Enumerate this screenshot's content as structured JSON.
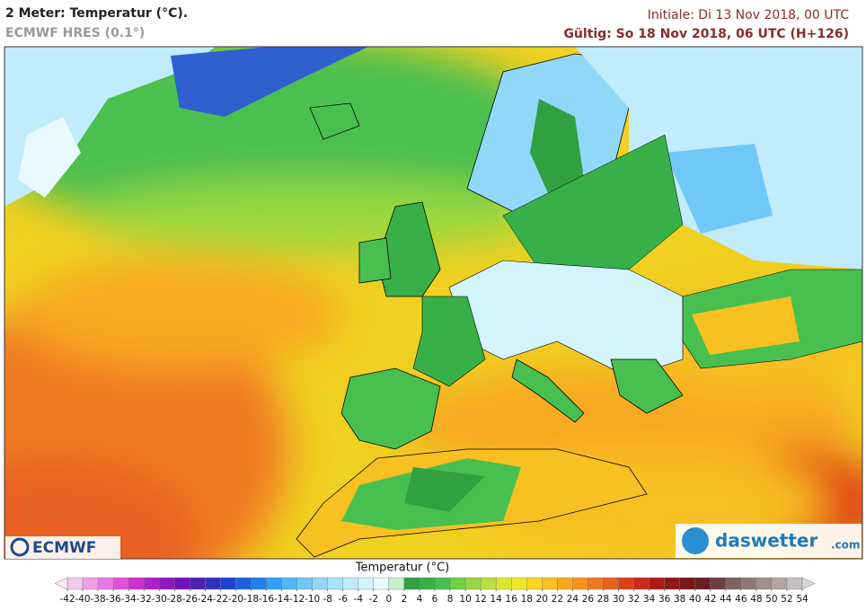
{
  "header": {
    "title": "2 Meter: Temperatur (°C).",
    "model": "ECMWF HRES (0.1°)",
    "init": "Initiale: Di 13 Nov 2018, 00 UTC",
    "valid": "Gültig: So 18 Nov 2018, 06 UTC (H+126)"
  },
  "colorbar": {
    "label": "Temperatur (°C)",
    "ticks": [
      -42,
      -40,
      -38,
      -36,
      -34,
      -32,
      -30,
      -28,
      -26,
      -24,
      -22,
      -20,
      -18,
      -16,
      -14,
      -12,
      -10,
      -8,
      -6,
      -4,
      -2,
      0,
      2,
      4,
      6,
      8,
      10,
      12,
      14,
      16,
      18,
      20,
      22,
      24,
      26,
      28,
      30,
      32,
      34,
      36,
      38,
      40,
      42,
      44,
      46,
      48,
      50,
      52,
      54
    ],
    "under_color": "#fde8fb",
    "over_color": "#d8d8d8",
    "colors": [
      "#f5c8f0",
      "#f0a0ea",
      "#e878e0",
      "#e050d8",
      "#d030d0",
      "#b020c8",
      "#9018c0",
      "#7010b8",
      "#5020b0",
      "#3030c0",
      "#2040d0",
      "#2060e0",
      "#2080f0",
      "#30a0f8",
      "#50b8f8",
      "#70c8f8",
      "#90d8fa",
      "#a8e4fa",
      "#c0ecfb",
      "#d4f4fc",
      "#e8fafe",
      "#c8f0c8",
      "#30a040",
      "#38b048",
      "#48c050",
      "#70d048",
      "#98d840",
      "#b8e038",
      "#d8e830",
      "#f0e828",
      "#f8d820",
      "#f8c020",
      "#f8a820",
      "#f89020",
      "#f07820",
      "#e86020",
      "#e04018",
      "#d02818",
      "#b01818",
      "#901818",
      "#781818",
      "#682020",
      "#704040",
      "#806060",
      "#907878",
      "#a09090",
      "#b0a8a8",
      "#c8c0c0"
    ]
  },
  "logos": {
    "ecmwf": "ECMWF",
    "daswetter": "daswetter",
    "domain": ".com"
  }
}
